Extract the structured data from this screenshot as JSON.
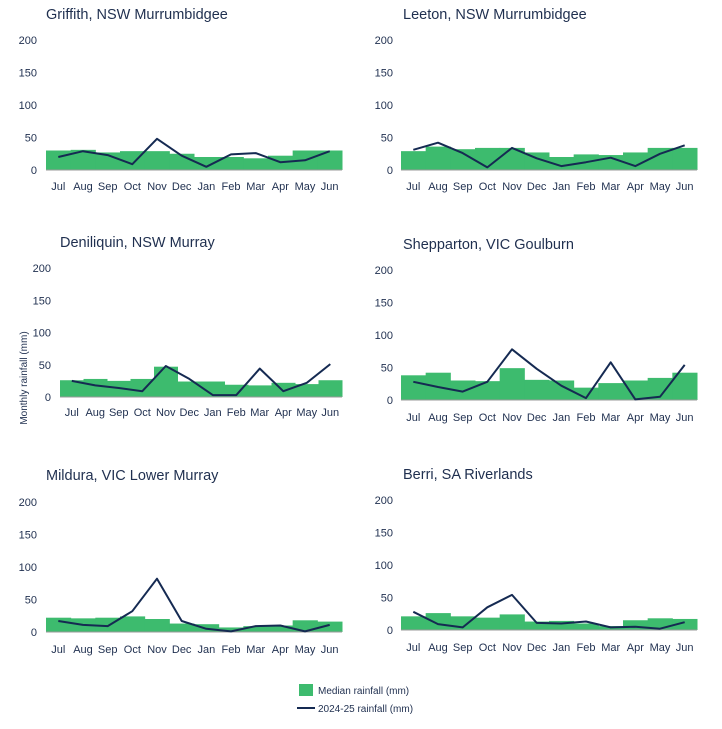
{
  "colors": {
    "median_bar": "#3dbb6e",
    "rainfall_line": "#152a52",
    "axis": "#9a9a9a",
    "text": "#1f2f4f"
  },
  "y_axis_label": "Monthly rainfall (mm)",
  "legend": [
    {
      "label": "Median rainfall (mm)",
      "kind": "bar"
    },
    {
      "label": "2024-25 rainfall (mm)",
      "kind": "line"
    }
  ],
  "chart_data": [
    {
      "type": "bar+line",
      "title": "Griffith, NSW Murrumbidgee",
      "categories": [
        "Jul",
        "Aug",
        "Sep",
        "Oct",
        "Nov",
        "Dec",
        "Jan",
        "Feb",
        "Mar",
        "Apr",
        "May",
        "Jun"
      ],
      "yticks": [
        0,
        50,
        100,
        150,
        200
      ],
      "ylim": [
        0,
        200
      ],
      "series": [
        {
          "name": "Median rainfall (mm)",
          "kind": "bar",
          "values": [
            30,
            31,
            27,
            29,
            29,
            25,
            20,
            20,
            18,
            22,
            30,
            30
          ]
        },
        {
          "name": "2024-25 rainfall (mm)",
          "kind": "line",
          "values": [
            20,
            29,
            23,
            9,
            48,
            22,
            5,
            24,
            26,
            12,
            15,
            29
          ]
        }
      ]
    },
    {
      "type": "bar+line",
      "title": "Leeton, NSW Murrumbidgee",
      "categories": [
        "Jul",
        "Aug",
        "Sep",
        "Oct",
        "Nov",
        "Dec",
        "Jan",
        "Feb",
        "Mar",
        "Apr",
        "May",
        "Jun"
      ],
      "yticks": [
        0,
        50,
        100,
        150,
        200
      ],
      "ylim": [
        0,
        200
      ],
      "series": [
        {
          "name": "Median rainfall (mm)",
          "kind": "bar",
          "values": [
            29,
            36,
            32,
            34,
            34,
            27,
            20,
            24,
            23,
            27,
            34,
            34
          ]
        },
        {
          "name": "2024-25 rainfall (mm)",
          "kind": "line",
          "values": [
            31,
            42,
            26,
            4,
            34,
            18,
            6,
            12,
            19,
            6,
            25,
            38
          ]
        }
      ]
    },
    {
      "type": "bar+line",
      "title": "Deniliquin, NSW Murray",
      "categories": [
        "Jul",
        "Aug",
        "Sep",
        "Oct",
        "Nov",
        "Dec",
        "Jan",
        "Feb",
        "Mar",
        "Apr",
        "May",
        "Jun"
      ],
      "yticks": [
        0,
        50,
        100,
        150,
        200
      ],
      "ylim": [
        0,
        200
      ],
      "series": [
        {
          "name": "Median rainfall (mm)",
          "kind": "bar",
          "values": [
            26,
            28,
            25,
            28,
            47,
            24,
            24,
            19,
            18,
            22,
            20,
            26
          ]
        },
        {
          "name": "2024-25 rainfall (mm)",
          "kind": "line",
          "values": [
            25,
            18,
            14,
            9,
            48,
            28,
            3,
            3,
            44,
            9,
            22,
            51
          ]
        }
      ]
    },
    {
      "type": "bar+line",
      "title": "Shepparton, VIC Goulburn",
      "categories": [
        "Jul",
        "Aug",
        "Sep",
        "Oct",
        "Nov",
        "Dec",
        "Jan",
        "Feb",
        "Mar",
        "Apr",
        "May",
        "Jun"
      ],
      "yticks": [
        0,
        50,
        100,
        150,
        200
      ],
      "ylim": [
        0,
        200
      ],
      "series": [
        {
          "name": "Median rainfall (mm)",
          "kind": "bar",
          "values": [
            38,
            42,
            30,
            29,
            49,
            31,
            30,
            19,
            26,
            30,
            34,
            42
          ]
        },
        {
          "name": "2024-25 rainfall (mm)",
          "kind": "line",
          "values": [
            28,
            20,
            13,
            28,
            78,
            48,
            22,
            3,
            58,
            1,
            5,
            54
          ]
        }
      ]
    },
    {
      "type": "bar+line",
      "title": "Mildura, VIC Lower Murray",
      "categories": [
        "Jul",
        "Aug",
        "Sep",
        "Oct",
        "Nov",
        "Dec",
        "Jan",
        "Feb",
        "Mar",
        "Apr",
        "May",
        "Jun"
      ],
      "yticks": [
        0,
        50,
        100,
        150,
        200
      ],
      "ylim": [
        0,
        200
      ],
      "series": [
        {
          "name": "Median rainfall (mm)",
          "kind": "bar",
          "values": [
            22,
            21,
            22,
            24,
            20,
            13,
            12,
            7,
            9,
            10,
            18,
            16
          ]
        },
        {
          "name": "2024-25 rainfall (mm)",
          "kind": "line",
          "values": [
            17,
            11,
            9,
            32,
            82,
            17,
            5,
            1,
            9,
            10,
            1,
            11
          ]
        }
      ]
    },
    {
      "type": "bar+line",
      "title": "Berri, SA Riverlands",
      "categories": [
        "Jul",
        "Aug",
        "Sep",
        "Oct",
        "Nov",
        "Dec",
        "Jan",
        "Feb",
        "Mar",
        "Apr",
        "May",
        "Jun"
      ],
      "yticks": [
        0,
        50,
        100,
        150,
        200
      ],
      "ylim": [
        0,
        200
      ],
      "series": [
        {
          "name": "Median rainfall (mm)",
          "kind": "bar",
          "values": [
            21,
            26,
            21,
            19,
            24,
            13,
            14,
            10,
            6,
            15,
            18,
            17
          ]
        },
        {
          "name": "2024-25 rainfall (mm)",
          "kind": "line",
          "values": [
            28,
            9,
            4,
            35,
            54,
            11,
            10,
            13,
            4,
            5,
            2,
            12
          ]
        }
      ]
    }
  ]
}
